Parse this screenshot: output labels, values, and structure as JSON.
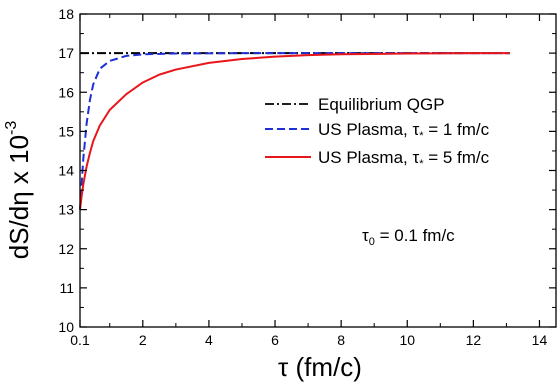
{
  "chart_data": {
    "type": "line",
    "xlabel": "τ (fm/c)",
    "ylabel_main": "dS/dη x 10",
    "ylabel_exponent": "-3",
    "xlim": [
      0.1,
      14.5
    ],
    "ylim": [
      10,
      18
    ],
    "x_ticks": [
      {
        "value": 0.1,
        "label": "0.1"
      },
      {
        "value": 2,
        "label": "2"
      },
      {
        "value": 4,
        "label": "4"
      },
      {
        "value": 6,
        "label": "6"
      },
      {
        "value": 8,
        "label": "8"
      },
      {
        "value": 10,
        "label": "10"
      },
      {
        "value": 12,
        "label": "12"
      },
      {
        "value": 14,
        "label": "14"
      }
    ],
    "y_ticks": [
      {
        "value": 10,
        "label": "10"
      },
      {
        "value": 11,
        "label": "11"
      },
      {
        "value": 12,
        "label": "12"
      },
      {
        "value": 13,
        "label": "13"
      },
      {
        "value": 14,
        "label": "14"
      },
      {
        "value": 15,
        "label": "15"
      },
      {
        "value": 16,
        "label": "16"
      },
      {
        "value": 17,
        "label": "17"
      },
      {
        "value": 18,
        "label": "18"
      }
    ],
    "grid": false,
    "legend_position": "right",
    "series": [
      {
        "name": "Equilibrium QGP",
        "color": "#000000",
        "dash": "dash-dot",
        "x": [
          0.1,
          13.1
        ],
        "y": [
          17.0,
          17.0
        ]
      },
      {
        "name": "US Plasma, τ* = 1 fm/c",
        "name_parts": {
          "pre": "US Plasma, τ",
          "sub": "*",
          "post": " = 1 fm/c"
        },
        "color": "#1f2fd6",
        "dash": "dashed",
        "x": [
          0.1,
          0.2,
          0.3,
          0.4,
          0.5,
          0.7,
          1.0,
          1.5,
          2.0,
          3.0,
          5.0,
          8.0,
          13.1
        ],
        "y": [
          13.0,
          14.3,
          15.2,
          15.8,
          16.2,
          16.6,
          16.8,
          16.93,
          16.97,
          16.99,
          17.0,
          17.0,
          17.0
        ]
      },
      {
        "name": "US Plasma, τ* = 5 fm/c",
        "name_parts": {
          "pre": "US Plasma, τ",
          "sub": "*",
          "post": " = 5 fm/c"
        },
        "color": "#e8161b",
        "dash": "solid",
        "x": [
          0.1,
          0.15,
          0.2,
          0.3,
          0.4,
          0.5,
          0.7,
          1.0,
          1.5,
          2.0,
          2.5,
          3.0,
          4.0,
          5.0,
          6.0,
          7.0,
          8.0,
          10.0,
          12.0,
          13.1
        ],
        "y": [
          13.0,
          13.35,
          13.65,
          14.1,
          14.45,
          14.75,
          15.15,
          15.55,
          15.95,
          16.25,
          16.45,
          16.58,
          16.75,
          16.85,
          16.91,
          16.95,
          16.97,
          16.99,
          17.0,
          17.0
        ]
      }
    ],
    "annotation": {
      "pre": "τ",
      "sub": "0",
      "post": " = 0.1 fm/c"
    }
  }
}
